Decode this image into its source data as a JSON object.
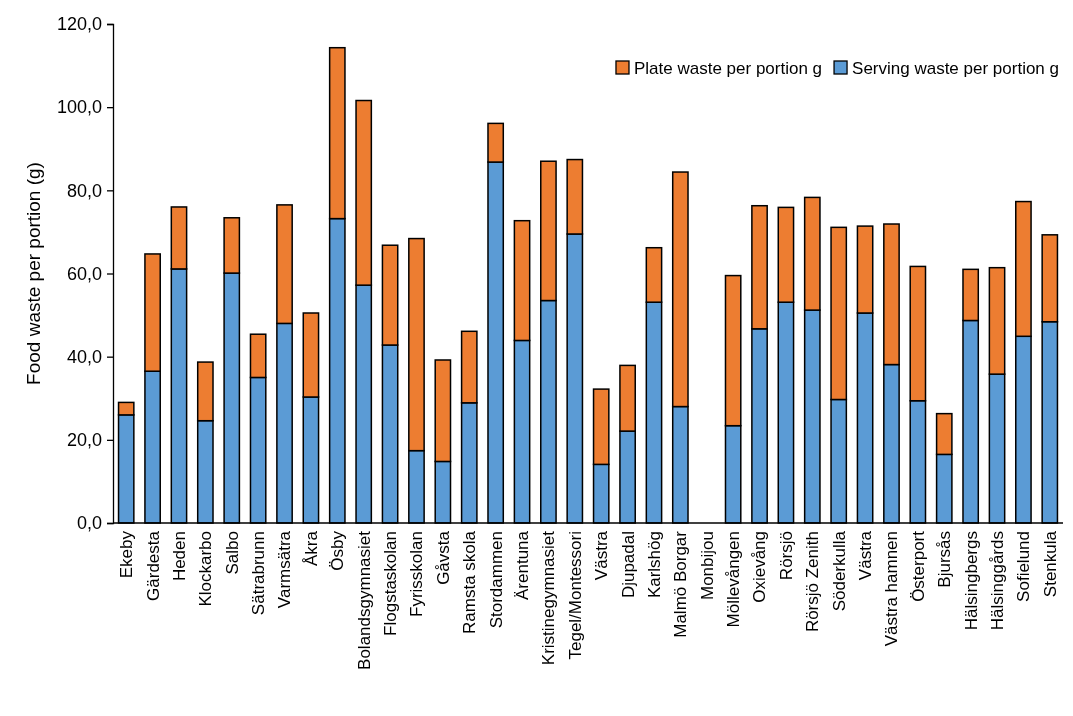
{
  "chart_data": {
    "type": "bar",
    "stacked": true,
    "ylabel": "Food waste per portion (g)",
    "categories": [
      "Ekeby",
      "Gärdesta",
      "Heden",
      "Klockarbo",
      "Salbo",
      "Sätrabrunn",
      "Varmsätra",
      "Åkra",
      "Ösby",
      "Bolandsgymnasiet",
      "Flogstaskolan",
      "Fyrisskolan",
      "Gåvsta",
      "Ramsta skola",
      "Stordammen",
      "Ärentuna",
      "Kristinegymnasiet",
      "Tegel/Montessori",
      "Västra",
      "Djupadal",
      "Karlshög",
      "Malmö Borgar",
      "Monbijou",
      "Möllevången",
      "Oxievång",
      "Rörsjö",
      "Rörsjö Zenith",
      "Söderkulla",
      "Västra",
      "Västra hamnen",
      "Österport",
      "Bjursås",
      "Hälsingbergs",
      "Hälsinggårds",
      "Sofielund",
      "Stenkula"
    ],
    "series": [
      {
        "name": "Serving waste per portion g",
        "color": "#5b9bd5",
        "values": [
          26.0,
          36.5,
          61.1,
          24.6,
          60.1,
          35.0,
          48.0,
          30.3,
          73.2,
          57.2,
          42.8,
          17.4,
          14.8,
          28.9,
          86.8,
          43.9,
          53.5,
          69.5,
          14.1,
          22.1,
          53.1,
          28.0,
          null,
          23.4,
          46.7,
          53.1,
          51.2,
          29.7,
          50.5,
          38.1,
          29.4,
          16.5,
          48.7,
          35.8,
          44.9,
          48.4
        ]
      },
      {
        "name": "Plate waste per portion g",
        "color": "#ed7d31",
        "values": [
          3.0,
          28.2,
          14.9,
          14.1,
          13.3,
          10.4,
          28.5,
          20.2,
          41.1,
          44.4,
          24.0,
          51.0,
          24.4,
          17.2,
          9.3,
          28.8,
          33.5,
          17.9,
          18.1,
          15.8,
          13.1,
          56.4,
          null,
          36.1,
          29.6,
          22.8,
          27.1,
          41.4,
          20.9,
          33.8,
          32.3,
          9.8,
          12.3,
          25.6,
          32.4,
          20.9
        ]
      }
    ],
    "ylim": [
      0,
      120
    ],
    "yticks": [
      {
        "value": 0,
        "label": "0,0"
      },
      {
        "value": 20,
        "label": "20,0"
      },
      {
        "value": 40,
        "label": "40,0"
      },
      {
        "value": 60,
        "label": "60,0"
      },
      {
        "value": 80,
        "label": "80,0"
      },
      {
        "value": 100,
        "label": "100,0"
      },
      {
        "value": 120,
        "label": "120,0"
      }
    ],
    "grid": false,
    "legend": "top right"
  }
}
